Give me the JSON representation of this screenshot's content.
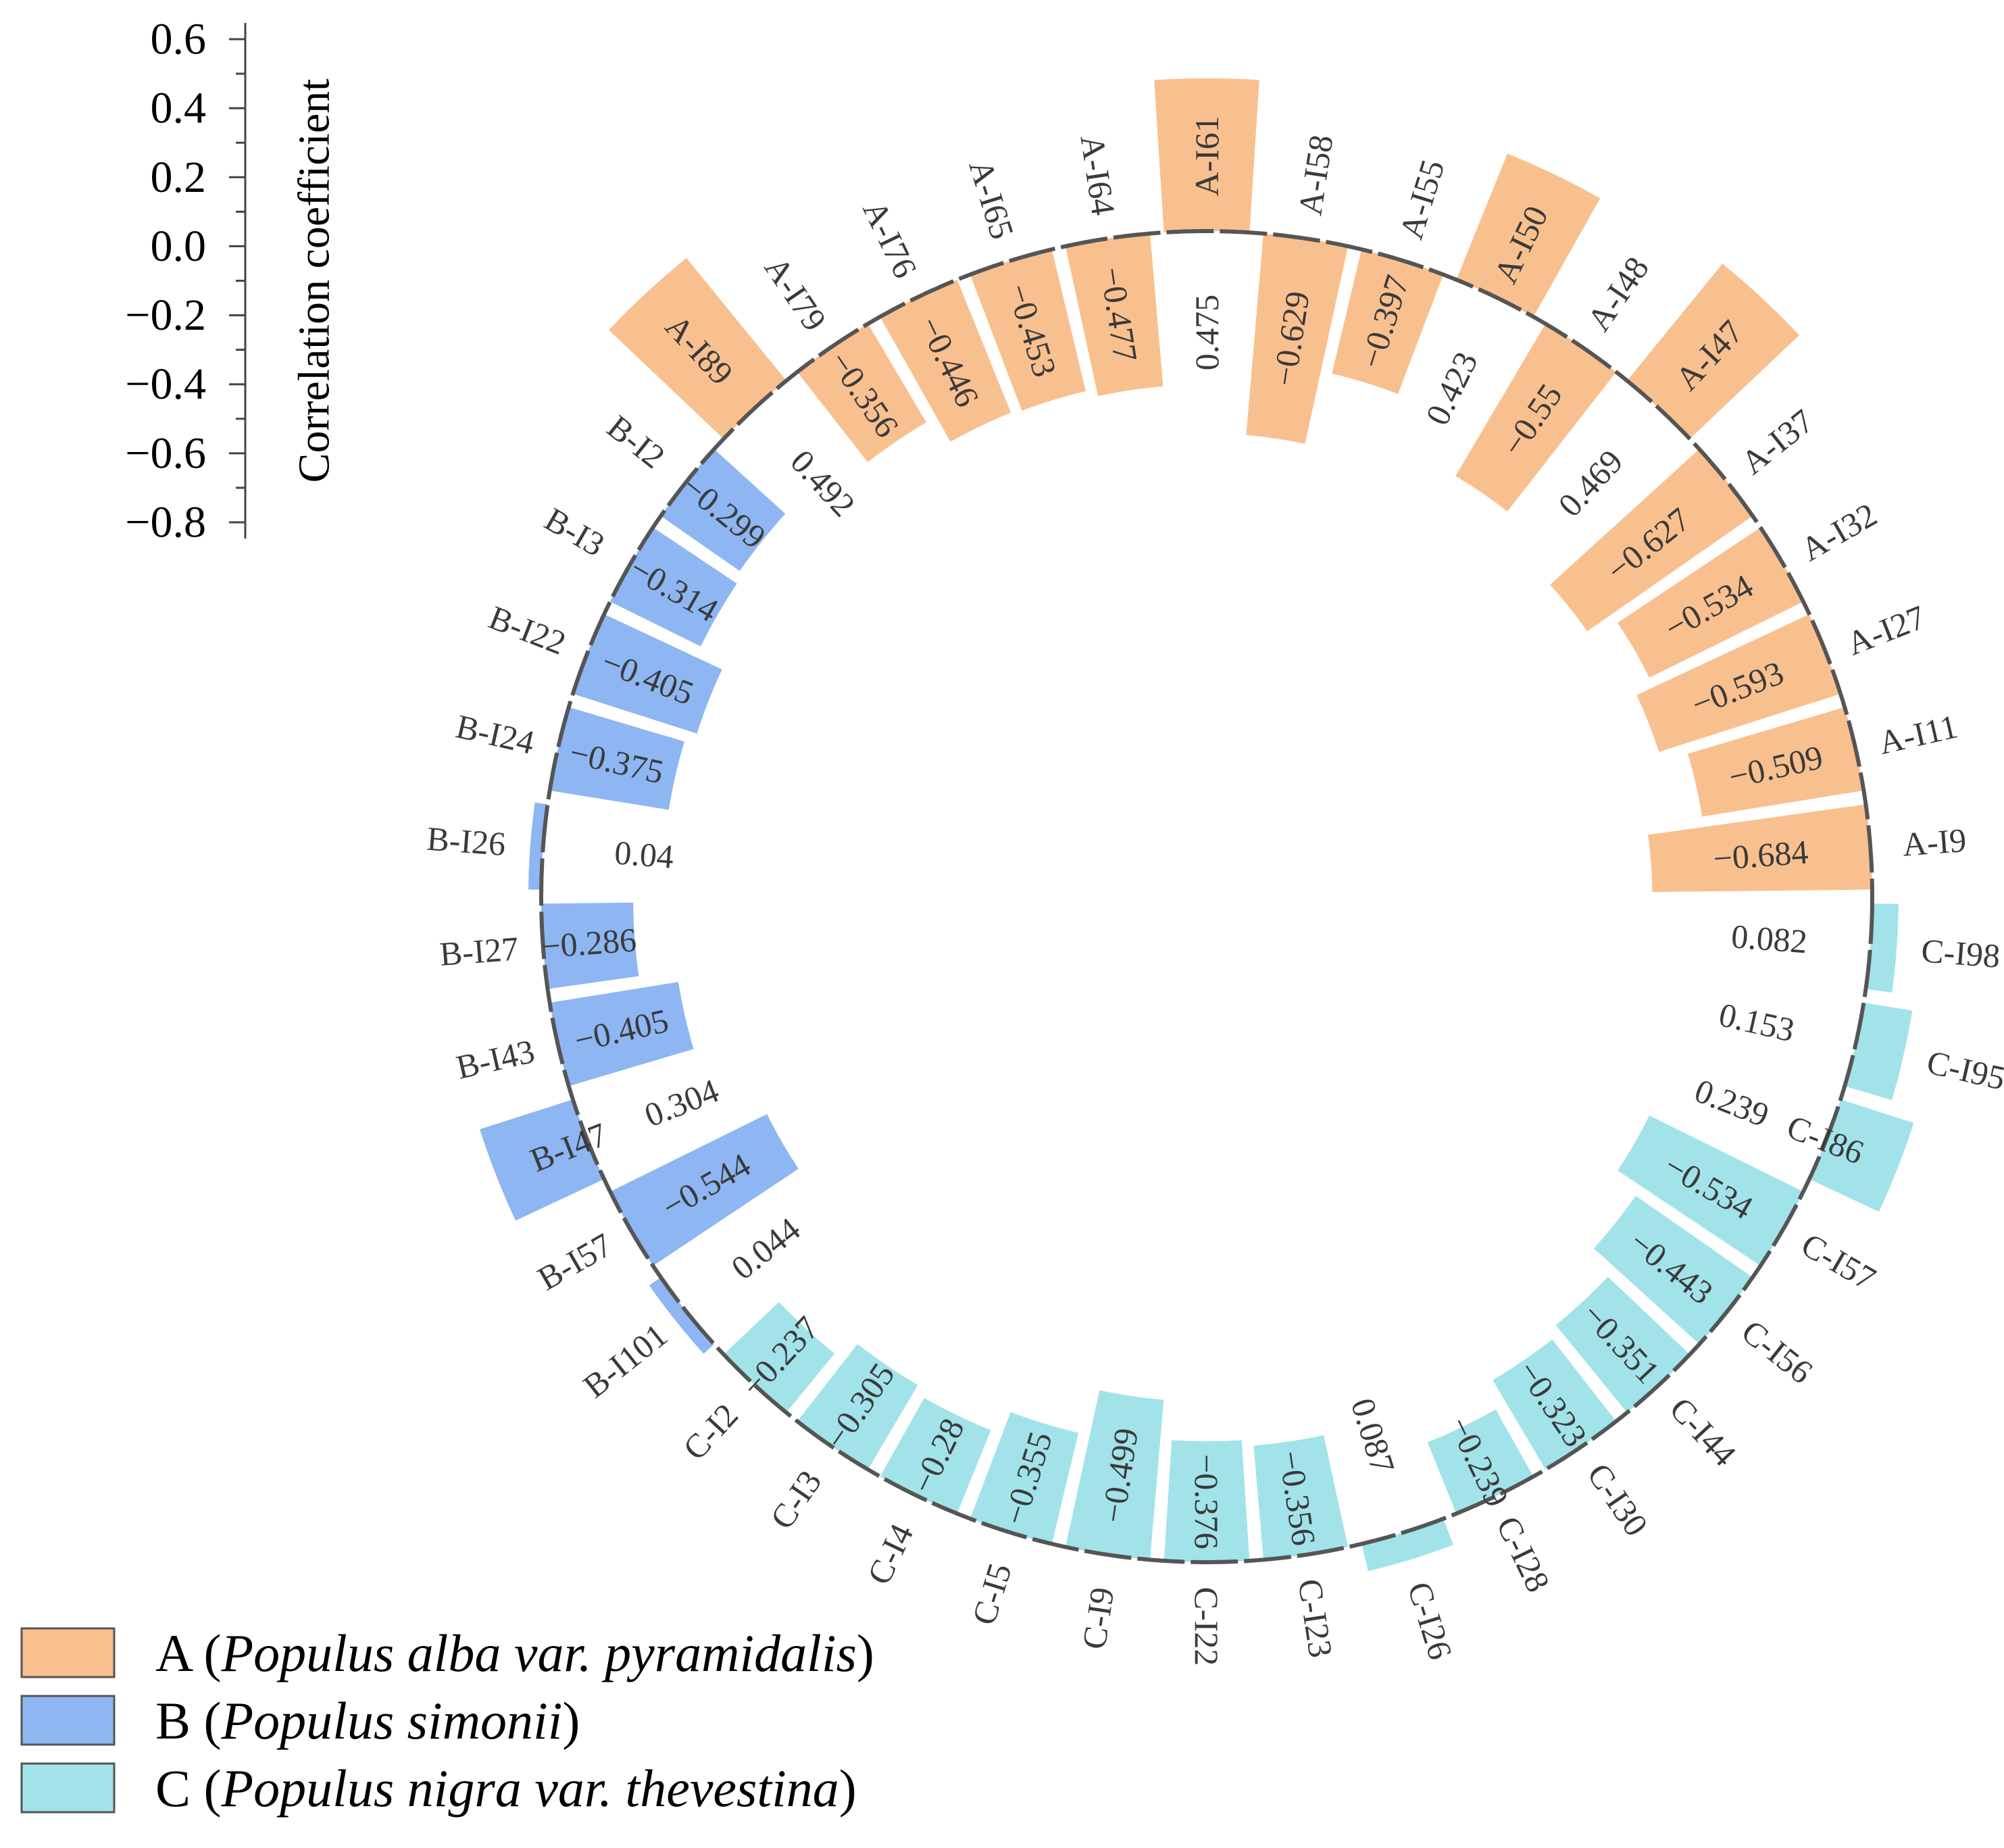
{
  "chart_data": {
    "type": "bar",
    "subtype": "circular-bar",
    "axis": {
      "title": "Correlation coefficient",
      "range": [
        -0.8,
        0.6
      ],
      "ticks": [
        "0.6",
        "0.4",
        "0.2",
        "0.0",
        "−0.2",
        "−0.4",
        "−0.6",
        "−0.8"
      ],
      "tick_values": [
        0.6,
        0.4,
        0.2,
        0.0,
        -0.2,
        -0.4,
        -0.6,
        -0.8
      ]
    },
    "groups": [
      {
        "key": "A",
        "prefix": "A",
        "species": "Populus alba var. pyramidalis",
        "color": "#F9C08F"
      },
      {
        "key": "B",
        "prefix": "B",
        "species": "Populus simonii",
        "color": "#8DB6F2"
      },
      {
        "key": "C",
        "prefix": "C",
        "species": "Populus nigra var. thevestina",
        "color": "#A2E3EA"
      }
    ],
    "legend": {
      "position": "bottom-left",
      "entries": [
        {
          "group": "A",
          "open": "A (",
          "italic": "Populus alba var. pyramidalis",
          "close": ")"
        },
        {
          "group": "B",
          "open": "B (",
          "italic": "Populus simonii",
          "close": ")"
        },
        {
          "group": "C",
          "open": "C (",
          "italic": "Populus nigra var. thevestina",
          "close": ")"
        }
      ]
    },
    "categories": [
      "A-I61",
      "A-I58",
      "A-I55",
      "A-I50",
      "A-I48",
      "A-I47",
      "A-I37",
      "A-I32",
      "A-I27",
      "A-I11",
      "A-I9",
      "C-I98",
      "C-I95",
      "C-I86",
      "C-I57",
      "C-I56",
      "C-I44",
      "C-I30",
      "C-I28",
      "C-I26",
      "C-I23",
      "C-I22",
      "C-I9",
      "C-I5",
      "C-I4",
      "C-I3",
      "C-I2",
      "B-I101",
      "B-I57",
      "B-I47",
      "B-I43",
      "B-I27",
      "B-I26",
      "B-I24",
      "B-I22",
      "B-I3",
      "B-I2",
      "A-I89",
      "A-I79",
      "A-I76",
      "A-I65",
      "A-I64"
    ],
    "group_of": [
      "A",
      "A",
      "A",
      "A",
      "A",
      "A",
      "A",
      "A",
      "A",
      "A",
      "A",
      "C",
      "C",
      "C",
      "C",
      "C",
      "C",
      "C",
      "C",
      "C",
      "C",
      "C",
      "C",
      "C",
      "C",
      "C",
      "C",
      "B",
      "B",
      "B",
      "B",
      "B",
      "B",
      "B",
      "B",
      "B",
      "B",
      "A",
      "A",
      "A",
      "A",
      "A"
    ],
    "values": [
      0.475,
      -0.629,
      -0.397,
      0.423,
      -0.55,
      0.469,
      -0.627,
      -0.534,
      -0.593,
      -0.509,
      -0.684,
      0.082,
      0.153,
      0.239,
      -0.534,
      -0.443,
      -0.351,
      -0.323,
      -0.239,
      0.087,
      -0.356,
      -0.376,
      -0.499,
      -0.355,
      -0.28,
      -0.305,
      -0.237,
      0.044,
      -0.544,
      0.304,
      -0.405,
      -0.286,
      0.04,
      -0.375,
      -0.405,
      -0.314,
      -0.299,
      0.492,
      -0.356,
      -0.446,
      -0.453,
      -0.477
    ],
    "value_labels": [
      "0.475",
      "−0.629",
      "−0.397",
      "0.423",
      "−0.55",
      "0.469",
      "−0.627",
      "−0.534",
      "−0.593",
      "−0.509",
      "−0.684",
      "0.082",
      "0.153",
      "0.239",
      "−0.534",
      "−0.443",
      "−0.351",
      "−0.323",
      "−0.239",
      "0.087",
      "−0.356",
      "−0.376",
      "−0.499",
      "−0.355",
      "−0.28",
      "−0.305",
      "−0.237",
      "0.044",
      "−0.544",
      "0.304",
      "−0.405",
      "−0.286",
      "0.04",
      "−0.375",
      "−0.405",
      "−0.314",
      "−0.299",
      "0.492",
      "−0.356",
      "−0.446",
      "−0.453",
      "−0.477"
    ]
  }
}
